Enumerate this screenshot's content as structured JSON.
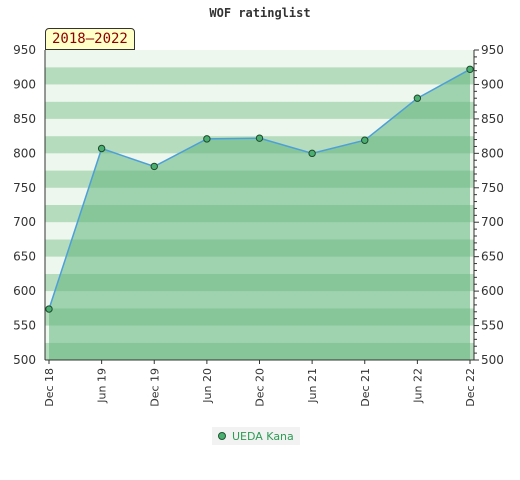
{
  "chart_data": {
    "type": "area",
    "title": "WOF ratinglist",
    "period_label": "2018–2022",
    "x": [
      "Dec 18",
      "Jun 19",
      "Dec 19",
      "Jun 20",
      "Dec 20",
      "Jun 21",
      "Dec 21",
      "Jun 22",
      "Dec 22"
    ],
    "series": [
      {
        "name": "UEDA Kana",
        "values": [
          574,
          807,
          781,
          821,
          822,
          800,
          819,
          880,
          922
        ]
      }
    ],
    "ylim": [
      500,
      950
    ],
    "yticks": [
      500,
      550,
      600,
      650,
      700,
      750,
      800,
      850,
      900,
      950
    ],
    "xlabel": "",
    "ylabel": "",
    "grid": true,
    "legend_position": "bottom",
    "colors": {
      "line": "#4d9fd9",
      "marker": "#4caf72",
      "fill": "#5fb57a",
      "band_light": "#eef7ee",
      "band_dark": "#b5dcbc"
    }
  }
}
